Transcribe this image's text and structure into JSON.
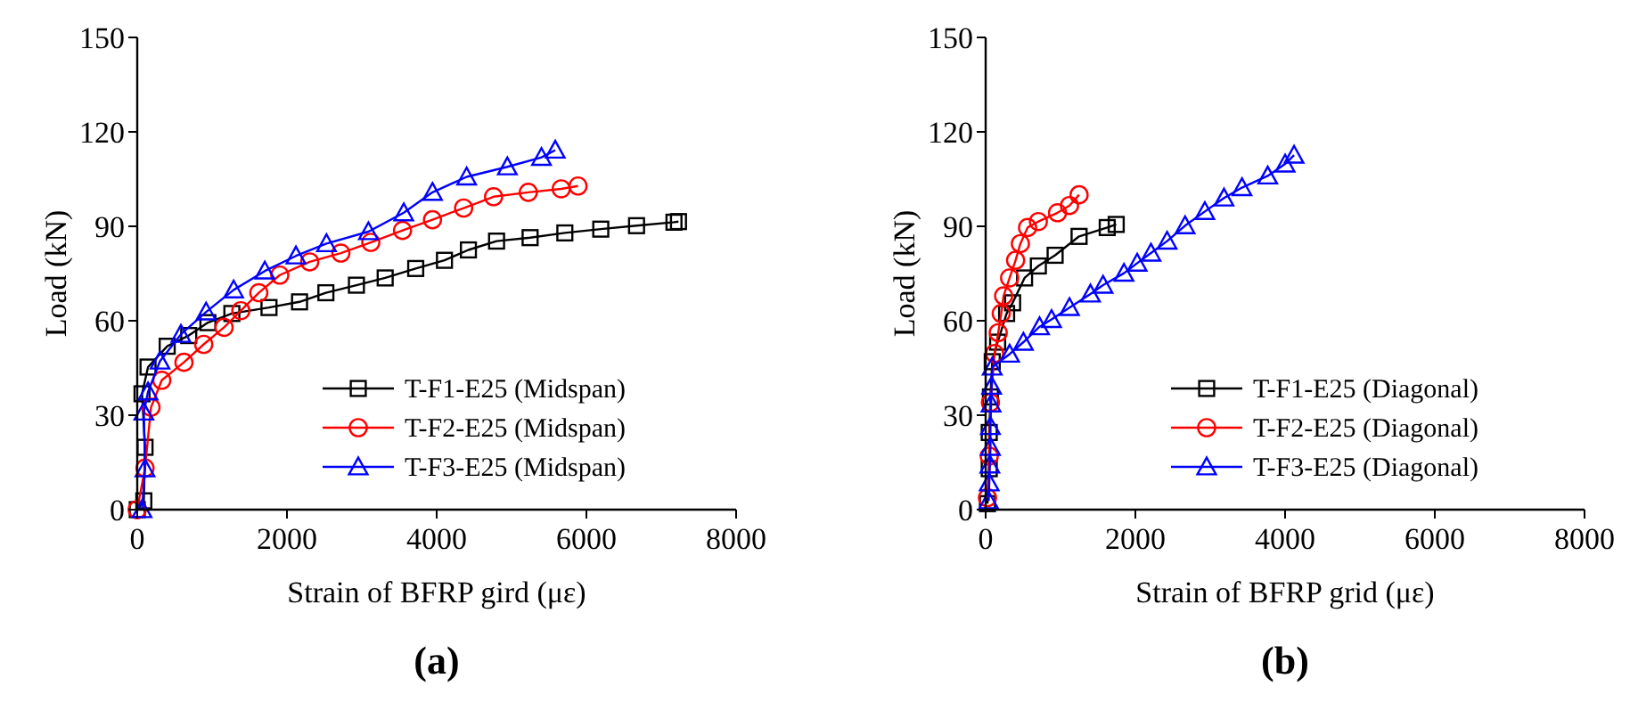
{
  "chart_data": [
    {
      "type": "line",
      "xlabel": "Strain of BFRP gird (με)",
      "ylabel": "Load (kN)",
      "xlim": [
        0,
        8000
      ],
      "xticks": [
        0,
        2000,
        4000,
        6000,
        8000
      ],
      "ylim": [
        0,
        150
      ],
      "yticks": [
        0,
        30,
        60,
        90,
        120,
        150
      ],
      "legend": "bottom right",
      "grid": false,
      "annotations": [
        "(a)"
      ],
      "series": [
        {
          "name": "T-F1-E25 (Midspan)",
          "color": "#000000",
          "marker": "square",
          "x": [
            0,
            88,
            104,
            64,
            144,
            400,
            688,
            944,
            1264,
            1760,
            2168,
            2520,
            2928,
            3312,
            3720,
            4104,
            4424,
            4800,
            5248,
            5712,
            6192,
            6670,
            7170,
            7230
          ],
          "values": [
            0,
            2.8,
            19.8,
            36.8,
            45.3,
            51.9,
            55.3,
            59.4,
            62.3,
            64.2,
            66,
            68.9,
            71.3,
            73.6,
            76.6,
            79.2,
            82.5,
            85.3,
            86.4,
            87.9,
            89.1,
            90.2,
            91.3,
            91.5
          ]
        },
        {
          "name": "T-F2-E25 (Midspan)",
          "color": "#ff0000",
          "marker": "circle",
          "x": [
            0,
            104,
            184,
            328,
            624,
            888,
            1160,
            1384,
            1624,
            1904,
            2304,
            2720,
            3120,
            3544,
            3944,
            4360,
            4760,
            5224,
            5664,
            5888
          ],
          "values": [
            0,
            13.2,
            32.5,
            41.1,
            46.8,
            52.5,
            57.9,
            63.2,
            68.9,
            74.5,
            78.7,
            81.5,
            84.9,
            88.7,
            92.1,
            95.8,
            99.4,
            100.8,
            101.9,
            102.8
          ]
        },
        {
          "name": "T-F3-E25 (Midspan)",
          "color": "#0000ff",
          "marker": "triangle",
          "x": [
            64,
            104,
            88,
            144,
            304,
            584,
            920,
            1288,
            1704,
            2120,
            2528,
            3088,
            3560,
            3944,
            4400,
            4944,
            5400,
            5584
          ],
          "values": [
            0,
            13,
            31,
            37.4,
            47.2,
            55.7,
            62.8,
            69.8,
            75.8,
            80.6,
            84.5,
            88.3,
            94.3,
            100.8,
            105.7,
            108.9,
            111.9,
            114.2
          ]
        }
      ]
    },
    {
      "type": "line",
      "xlabel": "Strain of BFRP grid (με)",
      "ylabel": "Load (kN)",
      "xlim": [
        0,
        8000
      ],
      "xticks": [
        0,
        2000,
        4000,
        6000,
        8000
      ],
      "ylim": [
        0,
        150
      ],
      "yticks": [
        0,
        30,
        60,
        90,
        120,
        150
      ],
      "legend": "bottom right",
      "grid": false,
      "annotations": [
        "(b)"
      ],
      "series": [
        {
          "name": "T-F1-E25 (Diagonal)",
          "color": "#000000",
          "marker": "square",
          "x": [
            24,
            48,
            48,
            64,
            88,
            160,
            280,
            360,
            520,
            704,
            928,
            1248,
            1624,
            1744
          ],
          "values": [
            1.9,
            13,
            24.5,
            35.8,
            47,
            53.2,
            62.3,
            65.7,
            73.6,
            77.4,
            80.8,
            86.8,
            89.6,
            90.6
          ]
        },
        {
          "name": "T-F2-E25 (Diagonal)",
          "color": "#ff0000",
          "marker": "circle",
          "x": [
            24,
            48,
            64,
            120,
            168,
            208,
            240,
            320,
            400,
            464,
            560,
            704,
            960,
            1120,
            1248
          ],
          "values": [
            3.8,
            17,
            34,
            49.6,
            56.2,
            62.3,
            67.9,
            73.6,
            79.2,
            84.5,
            89.6,
            91.5,
            94.3,
            96.6,
            100
          ]
        },
        {
          "name": "T-F3-E25 (Diagonal)",
          "color": "#0000ff",
          "marker": "triangle",
          "x": [
            40,
            48,
            56,
            64,
            64,
            72,
            80,
            88,
            320,
            504,
            720,
            880,
            1120,
            1400,
            1568,
            1848,
            2024,
            2208,
            2424,
            2664,
            2928,
            3184,
            3424,
            3768,
            4000,
            4120
          ],
          "values": [
            2.8,
            8.5,
            14.2,
            19.8,
            26.4,
            33.6,
            39.2,
            45.3,
            49.4,
            53.2,
            58.1,
            60.4,
            64.2,
            68.5,
            71.3,
            75.1,
            78.3,
            81.5,
            85.3,
            90.2,
            94.7,
            99,
            102.3,
            106,
            109.8,
            112.6
          ]
        }
      ]
    }
  ]
}
